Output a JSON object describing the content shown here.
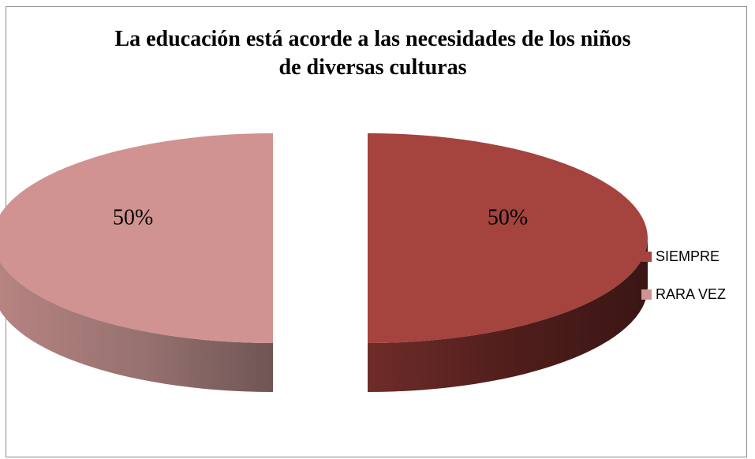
{
  "chart_data": {
    "type": "pie",
    "style": "3d-exploded",
    "title_lines": [
      "La educación está acorde a las necesidades de los niños",
      "de diversas culturas"
    ],
    "categories": [
      "SIEMPRE",
      "RARA VEZ"
    ],
    "values": [
      50,
      50
    ],
    "data_labels": [
      "50%",
      "50%"
    ],
    "colors": [
      "#A5433F",
      "#D09391"
    ],
    "legend_position": "right"
  }
}
